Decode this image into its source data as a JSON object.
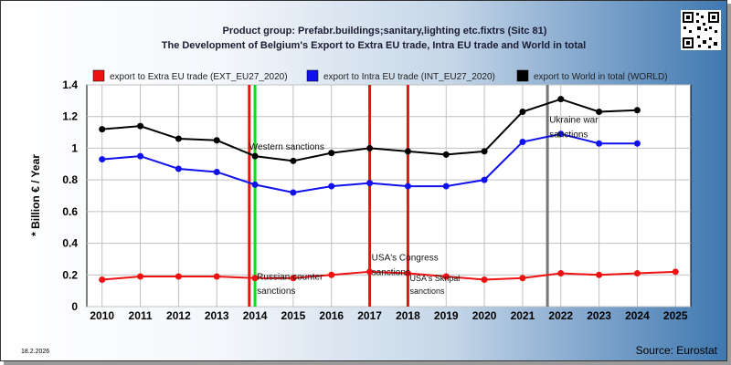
{
  "header": {
    "title_line1": "Product group: Prefabr.buildings;sanitary,lighting etc.fixtrs (Sitc 81)",
    "title_line2": "The Development of Belgium's Export to Extra EU trade, Intra EU trade and World in total"
  },
  "footer": {
    "date": "18.2.2026",
    "source": "Source: Eurostat"
  },
  "colors": {
    "extra": "#ee1111",
    "intra": "#1111ee",
    "world": "#000000",
    "green_line": "#11dd11",
    "gray_line": "#777777"
  },
  "chart_data": {
    "type": "line",
    "ylabel": "* Billion € / Year",
    "x": [
      2010,
      2011,
      2012,
      2013,
      2014,
      2015,
      2016,
      2017,
      2018,
      2019,
      2020,
      2021,
      2022,
      2023,
      2024,
      2025
    ],
    "xlim": [
      2009.6,
      2025.4
    ],
    "ylim": [
      0,
      1.4
    ],
    "yticks": [
      0,
      0.2,
      0.4,
      0.6,
      0.8,
      1,
      1.2,
      1.4
    ],
    "grid": true,
    "legend_position": "top",
    "series": [
      {
        "name": "export to Extra EU trade (EXT_EU27_2020)",
        "color": "#ee1111",
        "values": [
          0.17,
          0.19,
          0.19,
          0.19,
          0.18,
          0.18,
          0.2,
          0.22,
          0.21,
          0.19,
          0.17,
          0.18,
          0.21,
          0.2,
          0.21,
          0.22
        ]
      },
      {
        "name": "export to Intra EU trade (INT_EU27_2020)",
        "color": "#1111ee",
        "values": [
          0.93,
          0.95,
          0.87,
          0.85,
          0.77,
          0.72,
          0.76,
          0.78,
          0.76,
          0.76,
          0.8,
          1.04,
          1.09,
          1.03,
          1.03,
          null
        ]
      },
      {
        "name": "export to World in total (WORLD)",
        "color": "#000000",
        "values": [
          1.12,
          1.14,
          1.06,
          1.05,
          0.95,
          0.92,
          0.97,
          1.0,
          0.98,
          0.96,
          0.98,
          1.23,
          1.31,
          1.23,
          1.24,
          null
        ]
      }
    ],
    "events": [
      {
        "x": 2013.85,
        "color": "#ee1111",
        "label": ""
      },
      {
        "x": 2014.0,
        "color": "#11dd11",
        "label": ""
      },
      {
        "x": 2017.0,
        "color": "#ee1111",
        "label": ""
      },
      {
        "x": 2018.0,
        "color": "#ee1111",
        "label": ""
      },
      {
        "x": 2021.65,
        "color": "#777777",
        "label": ""
      }
    ],
    "annotations": [
      {
        "text": "Western sanctions",
        "x": 2013.85,
        "y": 0.99
      },
      {
        "text": "Russian counter",
        "x": 2014.05,
        "y": 0.17
      },
      {
        "text": "sanctions",
        "x": 2014.05,
        "y": 0.08
      },
      {
        "text": "USA's Congress",
        "x": 2017.05,
        "y": 0.29
      },
      {
        "text": "sanctions",
        "x": 2017.05,
        "y": 0.2
      },
      {
        "text": "USA's Skripal",
        "x": 2018.05,
        "y": 0.16
      },
      {
        "text": "sanctions",
        "x": 2018.05,
        "y": 0.08
      },
      {
        "text": "Ukraine war",
        "x": 2021.7,
        "y": 1.16
      },
      {
        "text": "sanctions",
        "x": 2021.7,
        "y": 1.07
      }
    ]
  }
}
